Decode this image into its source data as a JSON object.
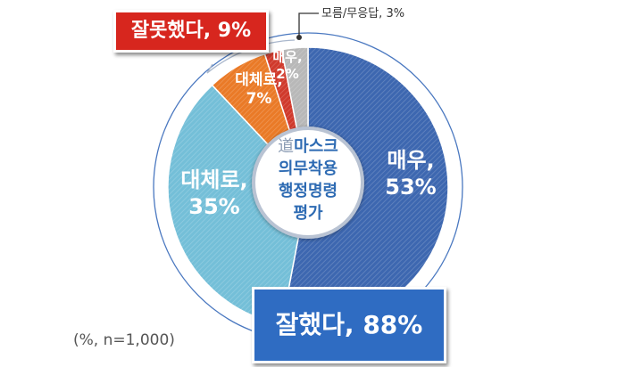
{
  "chart_data": {
    "type": "pie",
    "title_char": "道",
    "center_title_lines": [
      "마스크",
      "의무착용",
      "행정명령",
      "평가"
    ],
    "slices": [
      {
        "key": "very_good",
        "label_lines": [
          "매우,",
          "53%"
        ],
        "value": 53,
        "color": "#3d67b0"
      },
      {
        "key": "somewhat_good",
        "label_lines": [
          "대체로,",
          "35%"
        ],
        "value": 35,
        "color": "#74bfd8"
      },
      {
        "key": "somewhat_bad",
        "label_lines": [
          "대체로,",
          "7%"
        ],
        "value": 7,
        "color": "#ea7a27"
      },
      {
        "key": "very_bad",
        "label_lines": [
          "매우,",
          "2%"
        ],
        "value": 2,
        "color": "#d03a2c"
      },
      {
        "key": "unknown",
        "label_lines": [
          ""
        ],
        "value": 3,
        "color": "#b8b8b8"
      }
    ],
    "groups": {
      "good": {
        "label": "잘했다, 88%",
        "value": 88,
        "color": "#2f6cc2"
      },
      "bad": {
        "label": "잘못했다, 9%",
        "value": 9,
        "color": "#d7261e"
      },
      "unknown": {
        "label": "모름/무응답, 3%",
        "value": 3
      }
    },
    "note": "(%, n=1,000)"
  }
}
